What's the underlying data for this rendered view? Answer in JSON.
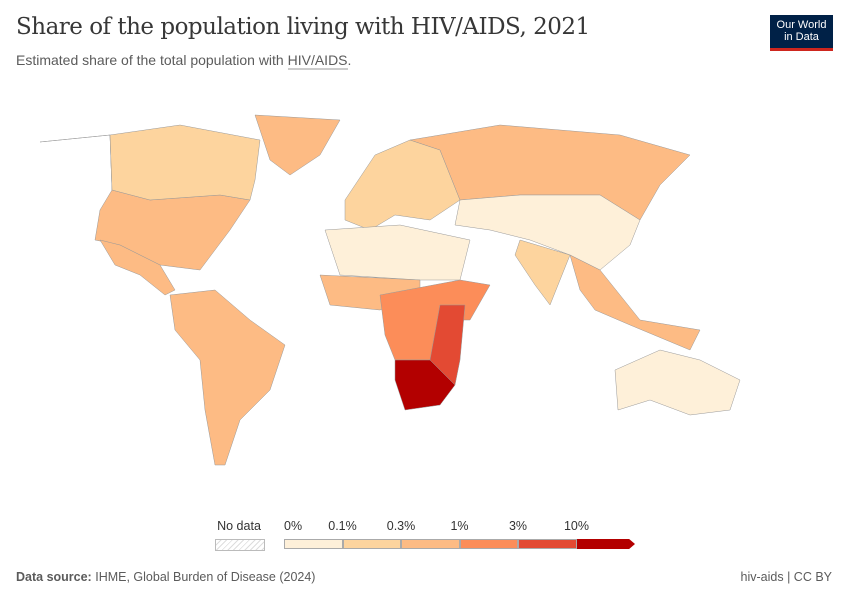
{
  "header": {
    "title": "Share of the population living with HIV/AIDS, 2021",
    "subtitle_prefix": "Estimated share of the total population with ",
    "subtitle_term": "HIV/AIDS",
    "subtitle_suffix": ".",
    "logo": "Our World in Data"
  },
  "legend": {
    "no_data_label": "No data",
    "ticks": [
      "0%",
      "0.1%",
      "0.3%",
      "1%",
      "3%",
      "10%"
    ],
    "colors": [
      "#fef0d9",
      "#fdd49e",
      "#fdbb84",
      "#fc8d59",
      "#e34a33",
      "#b30000"
    ]
  },
  "map": {
    "type": "choropleth",
    "regions": [
      {
        "name": "North America",
        "bin": 2
      },
      {
        "name": "Canada",
        "bin": 1
      },
      {
        "name": "Greenland",
        "bin": 2
      },
      {
        "name": "Central America",
        "bin": 2
      },
      {
        "name": "South America",
        "bin": 2
      },
      {
        "name": "Europe",
        "bin": 1
      },
      {
        "name": "Russia",
        "bin": 2
      },
      {
        "name": "Asia",
        "bin": 0
      },
      {
        "name": "South Asia",
        "bin": 1
      },
      {
        "name": "Southeast Asia",
        "bin": 2
      },
      {
        "name": "North Africa",
        "bin": 0
      },
      {
        "name": "West Africa",
        "bin": 2
      },
      {
        "name": "Central Africa",
        "bin": 3
      },
      {
        "name": "East Africa",
        "bin": 4
      },
      {
        "name": "Southern Africa",
        "bin": 5
      },
      {
        "name": "Australia",
        "bin": 0
      }
    ]
  },
  "footer": {
    "source_label": "Data source:",
    "source": "IHME, Global Burden of Disease (2024)",
    "right": "hiv-aids | CC BY"
  }
}
